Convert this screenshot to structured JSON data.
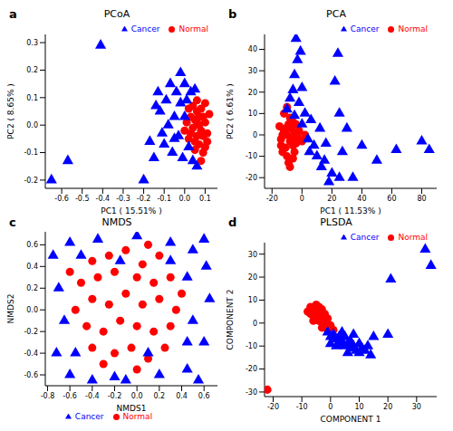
{
  "chart_data": [
    {
      "type": "scatter",
      "panel": "a",
      "title": "PCoA",
      "x_label": "PC1 ( 15.51% )",
      "y_label": "PC2 ( 8.65% )",
      "xlim": [
        -0.68,
        0.16
      ],
      "xticks": [
        -0.6,
        -0.5,
        -0.4,
        -0.3,
        -0.2,
        -0.1,
        {
          "value": 0,
          "label": "0.0"
        },
        0.1
      ],
      "ylim": [
        -0.23,
        0.33
      ],
      "yticks": [
        -0.2,
        -0.1,
        {
          "value": 0,
          "label": "0.0"
        },
        0.1,
        0.2,
        0.3
      ],
      "legend": "upper right",
      "series": [
        {
          "name": "Normal",
          "color": "#ff0000",
          "marker": "circle",
          "x": [
            0.05,
            0.07,
            0.08,
            0.06,
            0.09,
            0.1,
            0.04,
            0.03,
            0.06,
            0.08,
            0.11,
            0.07,
            0.05,
            0.09,
            0.02,
            0.1,
            0.12,
            0.04,
            0.03,
            0.06,
            0.08,
            0.11,
            0.01,
            0.07,
            0.05,
            0.02,
            0.09,
            0.1,
            0.0,
            0.06
          ],
          "values": [
            0.02,
            0.0,
            -0.02,
            -0.04,
            0.03,
            0.01,
            -0.01,
            0.03,
            0.05,
            0.06,
            -0.03,
            -0.07,
            -0.09,
            -0.1,
            -0.05,
            0.08,
            0.04,
            0.07,
            -0.03,
            0.09,
            -0.13,
            -0.06,
            0.01,
            0.03,
            -0.06,
            0.06,
            -0.04,
            -0.08,
            -0.02,
            0.01
          ]
        },
        {
          "name": "Cancer",
          "color": "#0000ff",
          "marker": "triangle",
          "x": [
            -0.65,
            -0.57,
            -0.41,
            -0.2,
            -0.17,
            -0.13,
            -0.12,
            -0.1,
            -0.08,
            -0.07,
            -0.06,
            -0.05,
            -0.04,
            -0.03,
            -0.02,
            -0.01,
            0.0,
            0.01,
            0.02,
            0.03,
            0.04,
            0.05,
            -0.09,
            -0.11,
            -0.14,
            -0.02,
            0.06,
            -0.05,
            0.0,
            -0.15
          ],
          "values": [
            -0.2,
            -0.13,
            0.29,
            -0.2,
            -0.06,
            0.12,
            0.05,
            -0.07,
            0.0,
            0.15,
            -0.1,
            0.03,
            0.12,
            -0.04,
            0.08,
            -0.12,
            0.15,
            0.09,
            -0.08,
            0.12,
            -0.13,
            0.13,
            0.09,
            -0.03,
            0.07,
            0.19,
            -0.15,
            -0.05,
            0.03,
            -0.12
          ]
        }
      ]
    },
    {
      "type": "scatter",
      "panel": "b",
      "title": "PCA",
      "x_label": "PC1 ( 11.53% )",
      "y_label": "PC2 ( 6.61% )",
      "xlim": [
        -25,
        90
      ],
      "xticks": [
        -20,
        0,
        20,
        40,
        60,
        80
      ],
      "ylim": [
        -25,
        47
      ],
      "yticks": [
        -20,
        -10,
        0,
        10,
        20,
        30,
        40
      ],
      "legend": "upper right",
      "series": [
        {
          "name": "Normal",
          "color": "#ff0000",
          "marker": "circle",
          "x": [
            -10,
            -8,
            -12,
            -6,
            -9,
            -14,
            -5,
            -11,
            -7,
            -13,
            -4,
            -8,
            -10,
            -6,
            -15,
            -3,
            -9,
            -12,
            -5,
            -7,
            -11,
            -2,
            -8,
            -13,
            -6,
            0,
            -10,
            -4,
            -14,
            2
          ],
          "values": [
            0,
            -3,
            2,
            -5,
            5,
            -2,
            1,
            -6,
            3,
            -8,
            -4,
            8,
            -10,
            6,
            4,
            -1,
            -13,
            10,
            -8,
            -1,
            3,
            2,
            -15,
            0,
            -11,
            -3,
            13,
            5,
            -5,
            0
          ]
        },
        {
          "name": "Cancer",
          "color": "#0000ff",
          "marker": "triangle",
          "x": [
            -10,
            -8,
            -6,
            -5,
            -4,
            -3,
            -1,
            0,
            -5,
            0,
            2,
            4,
            5,
            6,
            8,
            10,
            12,
            13,
            15,
            16,
            20,
            22,
            24,
            25,
            27,
            30,
            34,
            40,
            50,
            63,
            80,
            85,
            25,
            18,
            -2
          ],
          "values": [
            12,
            17,
            21,
            28,
            45,
            35,
            39,
            22,
            9,
            5,
            10,
            -2,
            -8,
            7,
            -5,
            -10,
            3,
            -15,
            -12,
            -4,
            -18,
            25,
            38,
            -20,
            -8,
            3,
            -20,
            -5,
            -12,
            -7,
            -3,
            -7,
            10,
            -22,
            15
          ]
        }
      ]
    },
    {
      "type": "scatter",
      "panel": "c",
      "title": "NMDS",
      "x_label": "NMDS1",
      "y_label": "NMDS2",
      "xlim": [
        -0.82,
        0.72
      ],
      "xticks": [
        -0.8,
        -0.6,
        -0.4,
        -0.2,
        {
          "value": 0,
          "label": "0.0"
        },
        0.2,
        0.4,
        0.6
      ],
      "ylim": [
        -0.7,
        0.72
      ],
      "yticks": [
        -0.6,
        -0.4,
        -0.2,
        {
          "value": 0,
          "label": "0.0"
        },
        0.2,
        0.4,
        0.6
      ],
      "legend": "lower center",
      "series": [
        {
          "name": "Normal",
          "color": "#ff0000",
          "marker": "circle",
          "x": [
            -0.4,
            -0.25,
            -0.1,
            0.05,
            0.2,
            -0.5,
            -0.35,
            -0.2,
            0.0,
            0.15,
            0.3,
            -0.55,
            -0.4,
            -0.25,
            -0.1,
            0.05,
            0.2,
            0.35,
            -0.45,
            -0.3,
            -0.15,
            0.0,
            0.15,
            0.3,
            -0.4,
            -0.2,
            -0.05,
            0.1,
            0.25,
            -0.3,
            0.0,
            0.4,
            -0.6,
            0.1
          ],
          "values": [
            0.45,
            0.5,
            0.55,
            0.42,
            0.5,
            0.25,
            0.3,
            0.35,
            0.3,
            0.25,
            0.3,
            0.0,
            0.1,
            0.05,
            0.15,
            0.05,
            0.1,
            0.0,
            -0.15,
            -0.2,
            -0.1,
            -0.15,
            -0.2,
            -0.15,
            -0.35,
            -0.4,
            -0.35,
            -0.45,
            -0.35,
            -0.5,
            -0.55,
            0.15,
            0.35,
            0.6
          ]
        },
        {
          "name": "Cancer",
          "color": "#0000ff",
          "marker": "triangle",
          "x": [
            -0.6,
            -0.35,
            0.0,
            0.3,
            0.5,
            0.62,
            -0.75,
            -0.7,
            -0.65,
            -0.72,
            -0.6,
            -0.4,
            -0.1,
            0.2,
            0.45,
            0.6,
            0.5,
            0.65,
            0.45,
            0.3,
            -0.5,
            0.55,
            -0.2,
            0.1,
            -0.15,
            0.45,
            0.6,
            -0.55
          ],
          "values": [
            0.62,
            0.65,
            0.68,
            0.62,
            0.55,
            0.4,
            0.5,
            0.2,
            -0.1,
            -0.4,
            -0.6,
            -0.65,
            -0.65,
            -0.6,
            -0.55,
            -0.3,
            -0.1,
            0.1,
            0.3,
            0.45,
            0.5,
            -0.65,
            -0.62,
            -0.4,
            0.45,
            -0.3,
            0.65,
            -0.4
          ]
        }
      ]
    },
    {
      "type": "scatter",
      "panel": "d",
      "title": "PLSDA",
      "x_label": "COMPONENT 1",
      "y_label": "COMPONENT 2",
      "xlim": [
        -23,
        37
      ],
      "xticks": [
        -20,
        -10,
        0,
        10,
        20,
        30
      ],
      "ylim": [
        -32,
        35
      ],
      "yticks": [
        -30,
        -20,
        -10,
        0,
        10,
        20,
        30
      ],
      "legend": "upper right",
      "series": [
        {
          "name": "Normal",
          "color": "#ff0000",
          "marker": "circle",
          "x": [
            -22,
            -7,
            -6,
            -5,
            -5,
            -4,
            -4,
            -3,
            -3,
            -2,
            -2,
            -6,
            -7,
            -5,
            -4,
            -3,
            -1,
            -2,
            -6,
            -3,
            -5,
            -4,
            0,
            1,
            -8,
            -2
          ],
          "values": [
            -29,
            4,
            6,
            8,
            2,
            5,
            1,
            3,
            6,
            4,
            0,
            1,
            7,
            4,
            3,
            0,
            2,
            -2,
            3,
            -2,
            5,
            7,
            -1,
            -3,
            5,
            2
          ]
        },
        {
          "name": "Cancer",
          "color": "#0000ff",
          "marker": "triangle",
          "x": [
            -1,
            0,
            1,
            2,
            3,
            3,
            4,
            5,
            5,
            6,
            7,
            7,
            8,
            9,
            10,
            10,
            11,
            12,
            13,
            14,
            2,
            6,
            4,
            15,
            20,
            21,
            33,
            35,
            8,
            0
          ],
          "values": [
            -4,
            -6,
            -5,
            -7,
            -6,
            -9,
            -8,
            -10,
            -6,
            -9,
            -11,
            -8,
            -10,
            -12,
            -9,
            -13,
            -11,
            -12,
            -10,
            -14,
            -10,
            -13,
            -4,
            -6,
            -5,
            19,
            32,
            25,
            -5,
            -9
          ]
        }
      ]
    }
  ]
}
